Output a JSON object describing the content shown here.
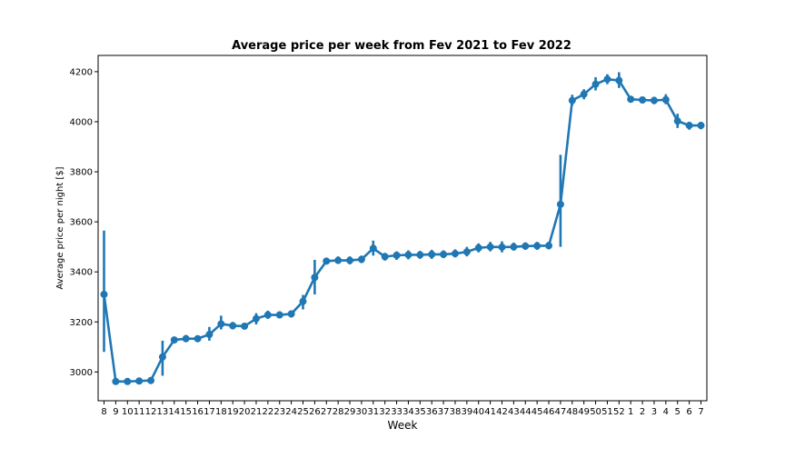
{
  "chart_data": {
    "type": "line",
    "title": "Average price per week from Fev 2021 to Fev 2022",
    "xlabel": "Week",
    "ylabel": "Average price per night [$]",
    "categories": [
      "8",
      "9",
      "10",
      "11",
      "12",
      "13",
      "14",
      "15",
      "16",
      "17",
      "18",
      "19",
      "20",
      "21",
      "22",
      "23",
      "24",
      "25",
      "26",
      "27",
      "28",
      "29",
      "30",
      "31",
      "32",
      "33",
      "34",
      "35",
      "36",
      "37",
      "38",
      "39",
      "40",
      "41",
      "42",
      "43",
      "44",
      "45",
      "46",
      "47",
      "48",
      "49",
      "50",
      "51",
      "52",
      "1",
      "2",
      "3",
      "4",
      "5",
      "6",
      "7"
    ],
    "series": [
      {
        "values": [
          3310,
          2962,
          2962,
          2964,
          2966,
          3060,
          3128,
          3133,
          3133,
          3150,
          3192,
          3185,
          3183,
          3213,
          3228,
          3228,
          3232,
          3282,
          3378,
          3443,
          3446,
          3446,
          3450,
          3494,
          3461,
          3466,
          3468,
          3468,
          3470,
          3470,
          3473,
          3480,
          3496,
          3500,
          3499,
          3500,
          3503,
          3504,
          3505,
          3670,
          4085,
          4110,
          4150,
          4170,
          4165,
          4090,
          4087,
          4085,
          4088,
          4003,
          3985,
          3985
        ],
        "ci_low": [
          3080,
          2950,
          2950,
          2952,
          2952,
          2985,
          3115,
          3120,
          3120,
          3125,
          3170,
          3170,
          3170,
          3190,
          3212,
          3215,
          3218,
          3250,
          3310,
          3430,
          3432,
          3430,
          3435,
          3465,
          3445,
          3448,
          3450,
          3452,
          3452,
          3455,
          3458,
          3462,
          3478,
          3482,
          3478,
          3485,
          3488,
          3488,
          3490,
          3500,
          4065,
          4090,
          4125,
          4150,
          4135,
          4078,
          4075,
          4070,
          4070,
          3975,
          3968,
          3970
        ],
        "ci_high": [
          3565,
          2975,
          2975,
          2976,
          2980,
          3125,
          3140,
          3148,
          3146,
          3180,
          3225,
          3200,
          3196,
          3235,
          3245,
          3242,
          3246,
          3308,
          3448,
          3456,
          3462,
          3462,
          3465,
          3525,
          3476,
          3482,
          3486,
          3484,
          3488,
          3486,
          3490,
          3500,
          3514,
          3520,
          3522,
          3517,
          3518,
          3520,
          3520,
          3868,
          4108,
          4130,
          4178,
          4190,
          4198,
          4102,
          4100,
          4100,
          4110,
          4032,
          4000,
          4000
        ],
        "color": "#1f77b4"
      }
    ],
    "ylim": [
      2885,
      4265
    ],
    "yticks": [
      "3000",
      "3200",
      "3400",
      "3600",
      "3800",
      "4000",
      "4200"
    ],
    "grid": false,
    "legend": "none"
  }
}
